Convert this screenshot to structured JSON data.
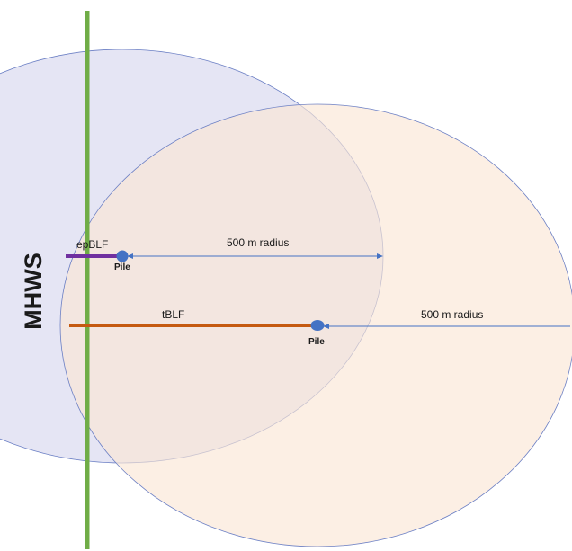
{
  "diagram": {
    "shoreline_label": "MHWS",
    "epblf": {
      "label": "epBLF",
      "pile_label": "Pile",
      "radius_label": "500 m radius"
    },
    "tblf": {
      "label": "tBLF",
      "pile_label": "Pile",
      "radius_label": "500 m radius"
    },
    "colors": {
      "shoreline": "#70ad47",
      "epblf_line": "#7030a0",
      "tblf_line": "#c55a11",
      "pile": "#4472c4",
      "epblf_circle_fill": "#dcdcf0",
      "tblf_circle_fill": "#fbe7d6",
      "circle_stroke": "#6b7fc4",
      "radius_arrow": "#4472c4"
    }
  }
}
